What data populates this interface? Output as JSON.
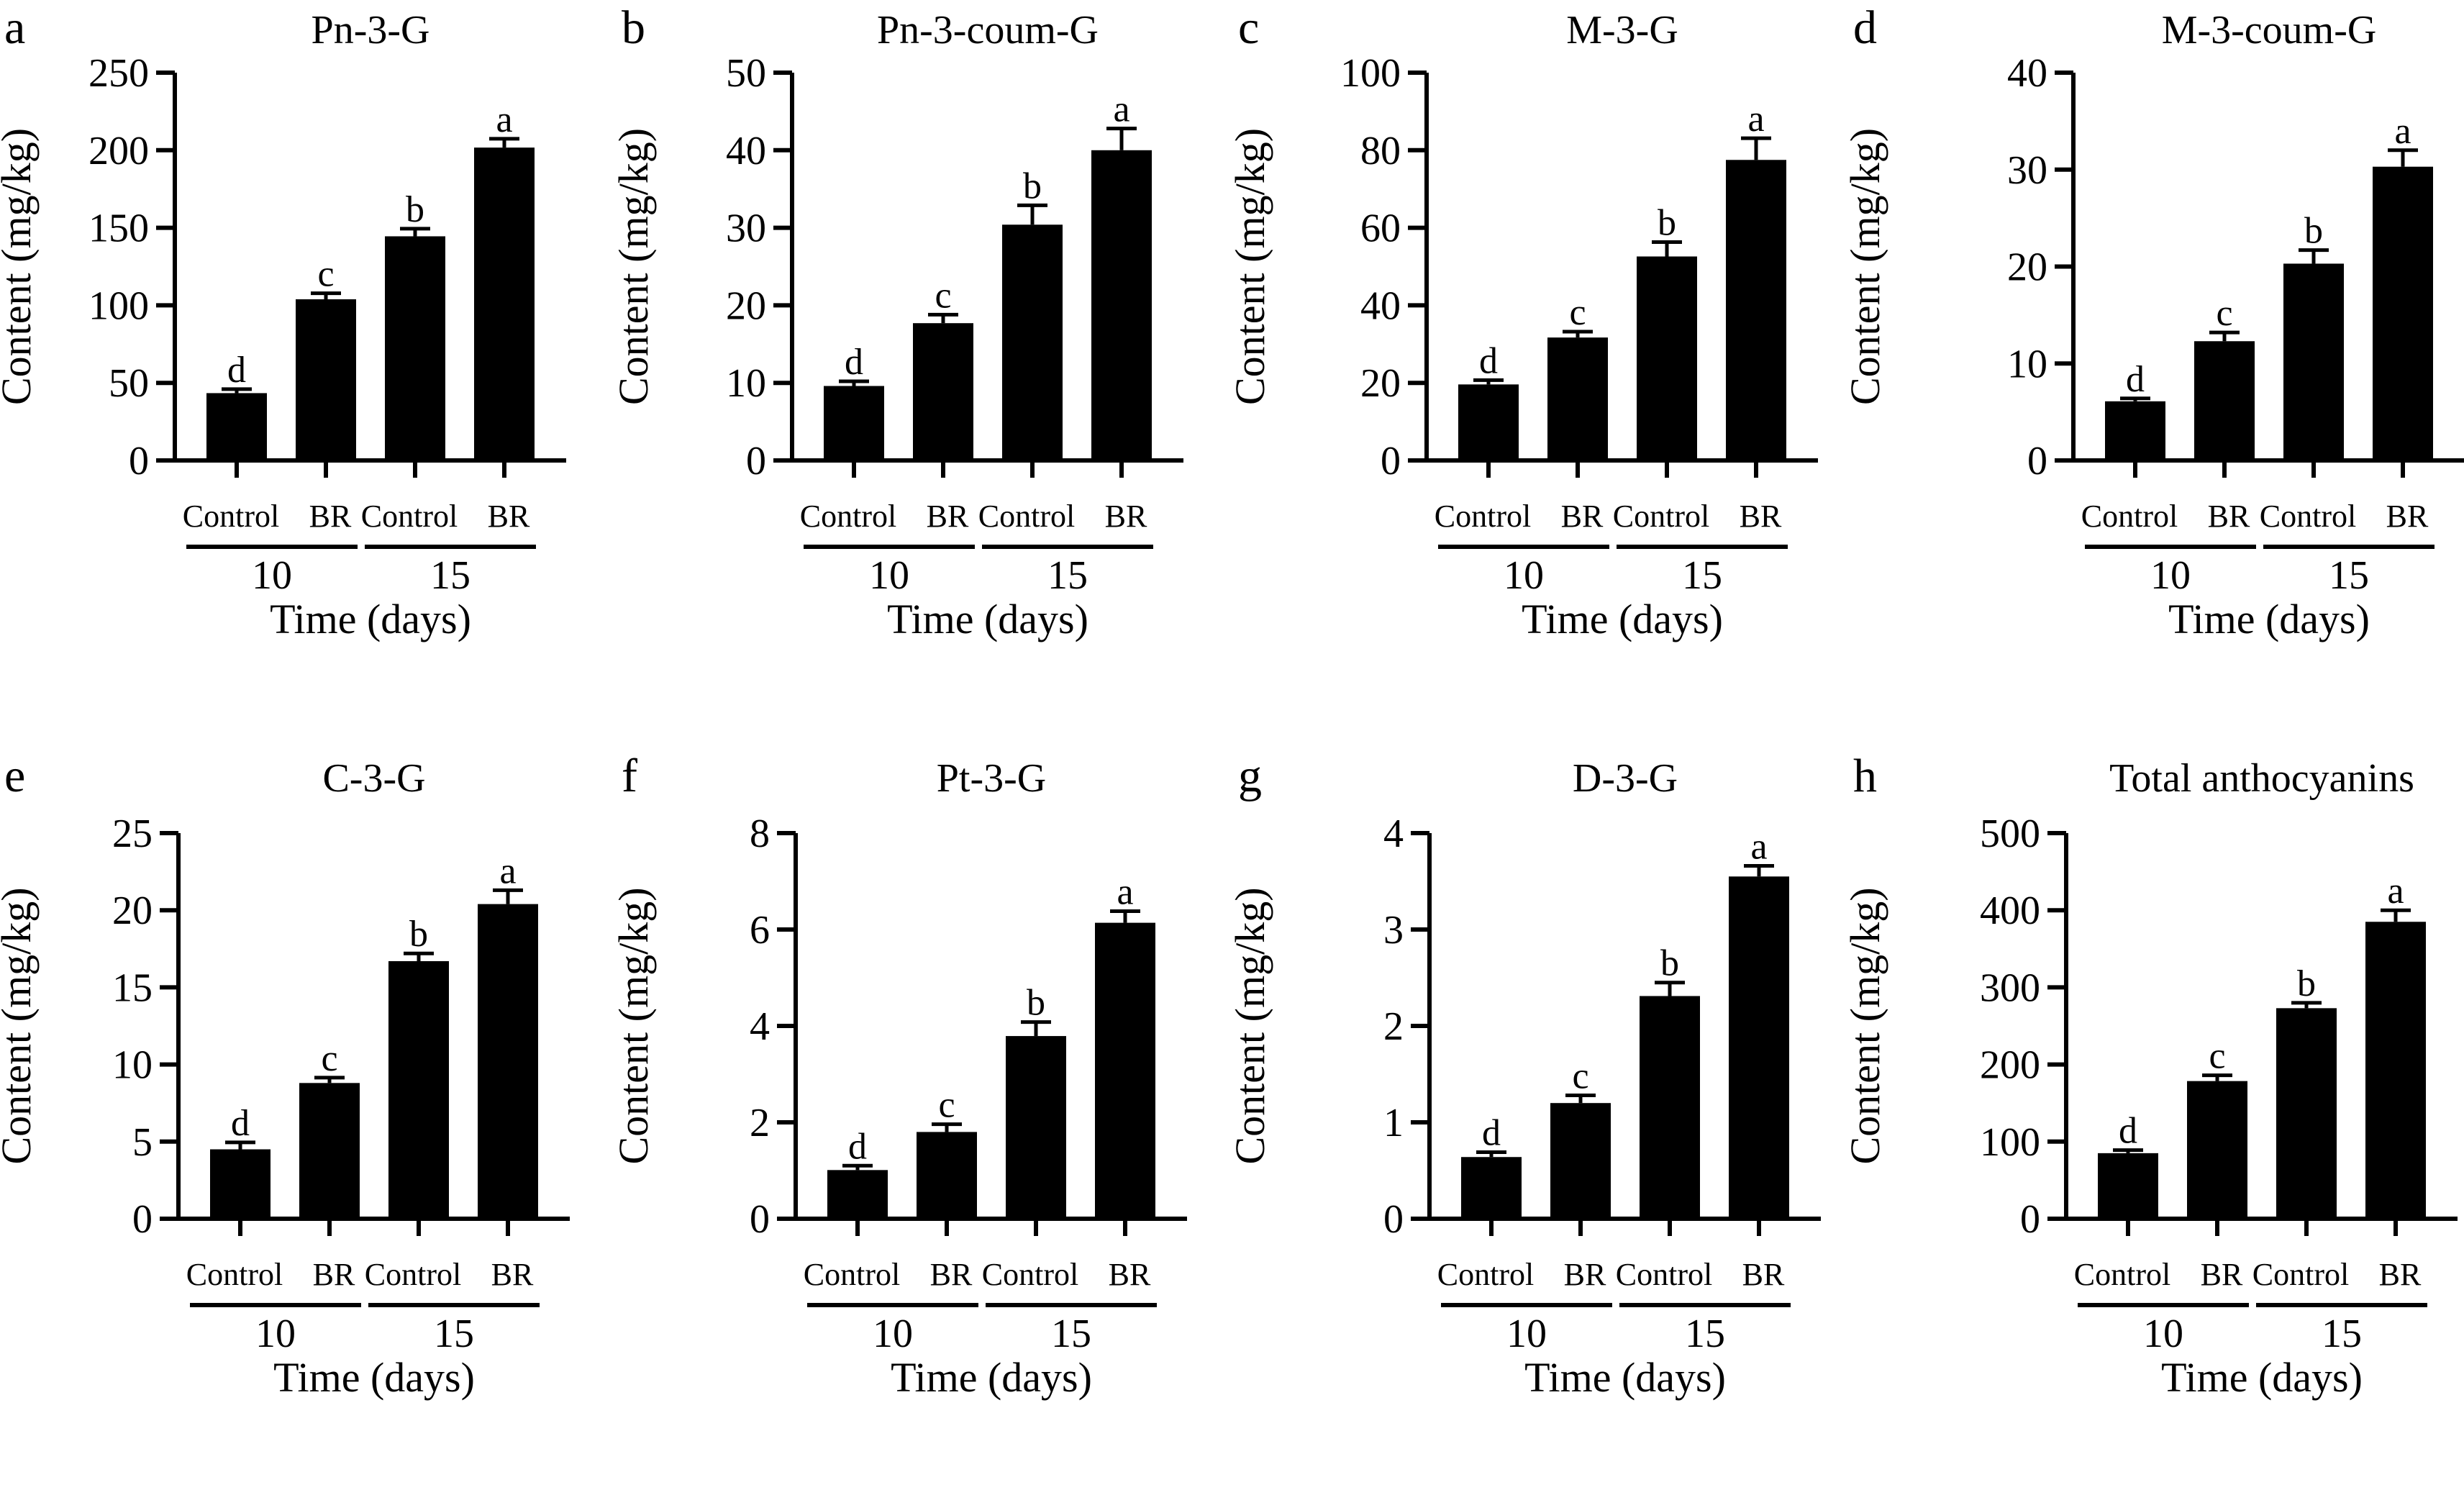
{
  "figure": {
    "common": {
      "ylabel": "Content (mg/kg)",
      "xlabel": "Time (days)",
      "categories": [
        "Control",
        "BR",
        "Control",
        "BR"
      ],
      "groups": [
        "10",
        "15"
      ]
    }
  },
  "chart_data": [
    {
      "panel": "a",
      "type": "bar",
      "title": "Pn-3-G",
      "xlabel": "Time (days)",
      "ylabel": "Content (mg/kg)",
      "categories": [
        "Control",
        "BR",
        "Control",
        "BR"
      ],
      "groups": [
        "10",
        "15"
      ],
      "ylim": [
        0,
        250
      ],
      "yticks": [
        0,
        50,
        100,
        150,
        200,
        250
      ],
      "values": [
        43.4,
        103.9,
        144.5,
        201.7
      ],
      "errors": [
        2.6,
        3.9,
        4.9,
        5.7
      ],
      "significance": [
        "d",
        "c",
        "b",
        "a"
      ]
    },
    {
      "panel": "b",
      "type": "bar",
      "title": "Pn-3-coum-G",
      "xlabel": "Time (days)",
      "ylabel": "Content (mg/kg)",
      "categories": [
        "Control",
        "BR",
        "Control",
        "BR"
      ],
      "groups": [
        "10",
        "15"
      ],
      "ylim": [
        0,
        50
      ],
      "yticks": [
        0,
        10,
        20,
        30,
        40,
        50
      ],
      "values": [
        9.6,
        17.7,
        30.4,
        40.0
      ],
      "errors": [
        0.6,
        1.1,
        2.5,
        2.8
      ],
      "significance": [
        "d",
        "c",
        "b",
        "a"
      ]
    },
    {
      "panel": "c",
      "type": "bar",
      "title": "M-3-G",
      "xlabel": "Time (days)",
      "ylabel": "Content (mg/kg)",
      "categories": [
        "Control",
        "BR",
        "Control",
        "BR"
      ],
      "groups": [
        "10",
        "15"
      ],
      "ylim": [
        0,
        100
      ],
      "yticks": [
        0,
        20,
        40,
        60,
        80,
        100
      ],
      "values": [
        19.6,
        31.7,
        52.6,
        77.5
      ],
      "errors": [
        1.1,
        1.5,
        3.7,
        5.6
      ],
      "significance": [
        "d",
        "c",
        "b",
        "a"
      ]
    },
    {
      "panel": "d",
      "type": "bar",
      "title": "M-3-coum-G",
      "xlabel": "Time (days)",
      "ylabel": "Content (mg/kg)",
      "categories": [
        "Control",
        "BR",
        "Control",
        "BR"
      ],
      "groups": [
        "10",
        "15"
      ],
      "ylim": [
        0,
        40
      ],
      "yticks": [
        0,
        10,
        20,
        30,
        40
      ],
      "values": [
        6.1,
        12.3,
        20.3,
        30.3
      ],
      "errors": [
        0.3,
        0.9,
        1.4,
        1.7
      ],
      "significance": [
        "d",
        "c",
        "b",
        "a"
      ]
    },
    {
      "panel": "e",
      "type": "bar",
      "title": "C-3-G",
      "xlabel": "Time (days)",
      "ylabel": "Content (mg/kg)",
      "categories": [
        "Control",
        "BR",
        "Control",
        "BR"
      ],
      "groups": [
        "10",
        "15"
      ],
      "ylim": [
        0,
        25
      ],
      "yticks": [
        0,
        5,
        10,
        15,
        20,
        25
      ],
      "values": [
        4.5,
        8.8,
        16.7,
        20.4
      ],
      "errors": [
        0.45,
        0.35,
        0.5,
        0.9
      ],
      "significance": [
        "d",
        "c",
        "b",
        "a"
      ]
    },
    {
      "panel": "f",
      "type": "bar",
      "title": "Pt-3-G",
      "xlabel": "Time (days)",
      "ylabel": "Content (mg/kg)",
      "categories": [
        "Control",
        "BR",
        "Control",
        "BR"
      ],
      "groups": [
        "10",
        "15"
      ],
      "ylim": [
        0,
        8
      ],
      "yticks": [
        0,
        2,
        4,
        6,
        8
      ],
      "values": [
        1.01,
        1.8,
        3.79,
        6.14
      ],
      "errors": [
        0.09,
        0.16,
        0.29,
        0.24
      ],
      "significance": [
        "d",
        "c",
        "b",
        "a"
      ]
    },
    {
      "panel": "g",
      "type": "bar",
      "title": "D-3-G",
      "xlabel": "Time (days)",
      "ylabel": "Content (mg/kg)",
      "categories": [
        "Control",
        "BR",
        "Control",
        "BR"
      ],
      "groups": [
        "10",
        "15"
      ],
      "ylim": [
        0,
        4
      ],
      "yticks": [
        0,
        1,
        2,
        3,
        4
      ],
      "values": [
        0.64,
        1.2,
        2.31,
        3.55
      ],
      "errors": [
        0.05,
        0.08,
        0.14,
        0.11
      ],
      "significance": [
        "d",
        "c",
        "b",
        "a"
      ]
    },
    {
      "panel": "h",
      "type": "bar",
      "title": "Total anthocyanins",
      "xlabel": "Time (days)",
      "ylabel": "Content (mg/kg)",
      "categories": [
        "Control",
        "BR",
        "Control",
        "BR"
      ],
      "groups": [
        "10",
        "15"
      ],
      "ylim": [
        0,
        500
      ],
      "yticks": [
        0,
        100,
        200,
        300,
        400,
        500
      ],
      "values": [
        85,
        178.5,
        273,
        385
      ],
      "errors": [
        4,
        7.5,
        7,
        15
      ],
      "significance": [
        "d",
        "c",
        "b",
        "a"
      ]
    }
  ]
}
